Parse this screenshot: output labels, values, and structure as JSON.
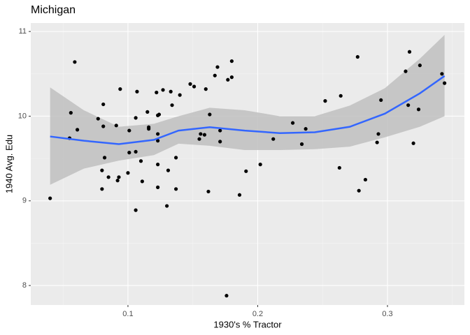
{
  "chart_data": {
    "type": "scatter",
    "title": "Michigan",
    "xlabel": "1930's % Tractor",
    "ylabel": "1940 Avg. Edu",
    "xlim": [
      0.0251,
      0.3593
    ],
    "ylim": [
      7.77,
      11.1
    ],
    "xticks": [
      0.1,
      0.2,
      0.3
    ],
    "yticks": [
      8,
      9,
      10,
      11
    ],
    "grid": true,
    "point_color": "#000000",
    "x": [
      0.04,
      0.056,
      0.059,
      0.055,
      0.061,
      0.077,
      0.081,
      0.081,
      0.082,
      0.08,
      0.08,
      0.085,
      0.091,
      0.094,
      0.092,
      0.093,
      0.1,
      0.101,
      0.101,
      0.107,
      0.106,
      0.106,
      0.106,
      0.11,
      0.111,
      0.115,
      0.116,
      0.116,
      0.122,
      0.123,
      0.123,
      0.124,
      0.123,
      0.123,
      0.123,
      0.127,
      0.13,
      0.131,
      0.133,
      0.134,
      0.137,
      0.137,
      0.14,
      0.148,
      0.151,
      0.155,
      0.156,
      0.159,
      0.16,
      0.162,
      0.163,
      0.167,
      0.169,
      0.171,
      0.171,
      0.177,
      0.18,
      0.18,
      0.176,
      0.186,
      0.191,
      0.202,
      0.212,
      0.227,
      0.234,
      0.237,
      0.252,
      0.263,
      0.264,
      0.277,
      0.278,
      0.283,
      0.292,
      0.293,
      0.295,
      0.314,
      0.316,
      0.317,
      0.32,
      0.324,
      0.325,
      0.342,
      0.344
    ],
    "y": [
      9.03,
      10.04,
      10.64,
      9.74,
      9.84,
      9.97,
      10.14,
      9.88,
      9.51,
      9.36,
      9.14,
      9.28,
      9.89,
      10.32,
      9.24,
      9.28,
      9.33,
      9.57,
      9.83,
      10.29,
      9.98,
      9.58,
      8.89,
      9.47,
      9.23,
      10.05,
      9.85,
      9.87,
      10.28,
      9.79,
      10.01,
      10.02,
      9.71,
      9.43,
      9.16,
      10.31,
      8.94,
      9.36,
      10.29,
      10.13,
      9.51,
      9.14,
      10.25,
      10.38,
      10.35,
      9.73,
      9.79,
      9.78,
      10.32,
      9.11,
      10.02,
      10.48,
      10.58,
      9.83,
      9.7,
      10.43,
      10.46,
      10.65,
      7.88,
      9.07,
      9.35,
      9.43,
      9.73,
      9.92,
      9.67,
      9.85,
      10.18,
      9.39,
      10.24,
      10.7,
      9.12,
      9.25,
      9.69,
      9.79,
      10.19,
      10.53,
      10.13,
      10.76,
      9.68,
      10.08,
      10.6,
      10.5,
      10.39
    ],
    "smooth": {
      "color": "#3366ff",
      "band_color": "#bfbfbf",
      "x": [
        0.04,
        0.066,
        0.093,
        0.12,
        0.139,
        0.163,
        0.19,
        0.217,
        0.244,
        0.271,
        0.298,
        0.325,
        0.344
      ],
      "values": [
        9.76,
        9.71,
        9.67,
        9.72,
        9.83,
        9.87,
        9.83,
        9.8,
        9.81,
        9.875,
        10.03,
        10.27,
        10.475
      ],
      "lower": [
        9.19,
        9.38,
        9.475,
        9.54,
        9.675,
        9.65,
        9.6,
        9.6,
        9.61,
        9.64,
        9.75,
        9.875,
        10.0
      ],
      "upper": [
        10.34,
        10.07,
        9.875,
        9.91,
        10.0,
        10.1,
        10.07,
        10.0,
        10.0,
        10.125,
        10.33,
        10.68,
        10.96
      ]
    }
  }
}
